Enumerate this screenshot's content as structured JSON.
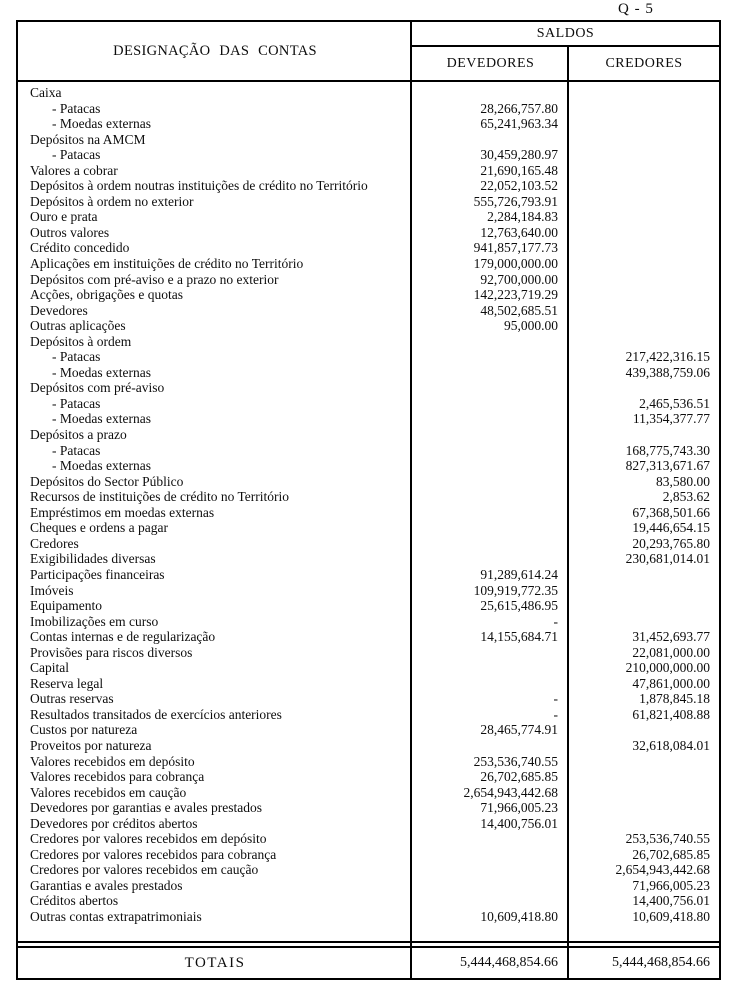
{
  "page": {
    "tag": "Q - 5"
  },
  "colors": {
    "ink": "#0d0d0d",
    "background": "#ffffff",
    "border": "#000000"
  },
  "table": {
    "header": {
      "designation": "DESIGNAÇÃO DAS CONTAS",
      "saldos": "SALDOS",
      "devedores": "DEVEDORES",
      "credores": "CREDORES"
    },
    "rows": [
      {
        "label": "Caixa",
        "indent": 0,
        "dev": "",
        "cred": ""
      },
      {
        "label": "- Patacas",
        "indent": 1,
        "dev": "28,266,757.80",
        "cred": ""
      },
      {
        "label": "- Moedas externas",
        "indent": 1,
        "dev": "65,241,963.34",
        "cred": ""
      },
      {
        "label": "Depósitos na AMCM",
        "indent": 0,
        "dev": "",
        "cred": ""
      },
      {
        "label": "- Patacas",
        "indent": 1,
        "dev": "30,459,280.97",
        "cred": ""
      },
      {
        "label": "Valores a cobrar",
        "indent": 0,
        "dev": "21,690,165.48",
        "cred": ""
      },
      {
        "label": "Depósitos à ordem noutras instituições de crédito no Território",
        "indent": 0,
        "dev": "22,052,103.52",
        "cred": ""
      },
      {
        "label": "Depósitos à ordem no exterior",
        "indent": 0,
        "dev": "555,726,793.91",
        "cred": ""
      },
      {
        "label": "Ouro e prata",
        "indent": 0,
        "dev": "2,284,184.83",
        "cred": ""
      },
      {
        "label": "Outros valores",
        "indent": 0,
        "dev": "12,763,640.00",
        "cred": ""
      },
      {
        "label": "Crédito concedido",
        "indent": 0,
        "dev": "941,857,177.73",
        "cred": ""
      },
      {
        "label": "Aplicações em instituições de crédito no Território",
        "indent": 0,
        "dev": "179,000,000.00",
        "cred": ""
      },
      {
        "label": "Depósitos com pré-aviso e a prazo no exterior",
        "indent": 0,
        "dev": "92,700,000.00",
        "cred": ""
      },
      {
        "label": "Acções, obrigações e quotas",
        "indent": 0,
        "dev": "142,223,719.29",
        "cred": ""
      },
      {
        "label": "Devedores",
        "indent": 0,
        "dev": "48,502,685.51",
        "cred": ""
      },
      {
        "label": "Outras aplicações",
        "indent": 0,
        "dev": "95,000.00",
        "cred": ""
      },
      {
        "label": "Depósitos à ordem",
        "indent": 0,
        "dev": "",
        "cred": ""
      },
      {
        "label": "- Patacas",
        "indent": 1,
        "dev": "",
        "cred": "217,422,316.15"
      },
      {
        "label": "- Moedas externas",
        "indent": 1,
        "dev": "",
        "cred": "439,388,759.06"
      },
      {
        "label": "Depósitos com pré-aviso",
        "indent": 0,
        "dev": "",
        "cred": ""
      },
      {
        "label": "- Patacas",
        "indent": 1,
        "dev": "",
        "cred": "2,465,536.51"
      },
      {
        "label": "- Moedas externas",
        "indent": 1,
        "dev": "",
        "cred": "11,354,377.77"
      },
      {
        "label": "Depósitos a prazo",
        "indent": 0,
        "dev": "",
        "cred": ""
      },
      {
        "label": "- Patacas",
        "indent": 1,
        "dev": "",
        "cred": "168,775,743.30"
      },
      {
        "label": "- Moedas externas",
        "indent": 1,
        "dev": "",
        "cred": "827,313,671.67"
      },
      {
        "label": "Depósitos do Sector Público",
        "indent": 0,
        "dev": "",
        "cred": "83,580.00"
      },
      {
        "label": "Recursos de instituições de crédito no Território",
        "indent": 0,
        "dev": "",
        "cred": "2,853.62"
      },
      {
        "label": "Empréstimos em moedas externas",
        "indent": 0,
        "dev": "",
        "cred": "67,368,501.66"
      },
      {
        "label": "Cheques e ordens a pagar",
        "indent": 0,
        "dev": "",
        "cred": "19,446,654.15"
      },
      {
        "label": "Credores",
        "indent": 0,
        "dev": "",
        "cred": "20,293,765.80"
      },
      {
        "label": "Exigibilidades diversas",
        "indent": 0,
        "dev": "",
        "cred": "230,681,014.01"
      },
      {
        "label": "Participações financeiras",
        "indent": 0,
        "dev": "91,289,614.24",
        "cred": ""
      },
      {
        "label": "Imóveis",
        "indent": 0,
        "dev": "109,919,772.35",
        "cred": ""
      },
      {
        "label": "Equipamento",
        "indent": 0,
        "dev": "25,615,486.95",
        "cred": ""
      },
      {
        "label": "Imobilizações em curso",
        "indent": 0,
        "dev": "-",
        "cred": ""
      },
      {
        "label": "Contas internas e de regularização",
        "indent": 0,
        "dev": "14,155,684.71",
        "cred": "31,452,693.77"
      },
      {
        "label": "Provisões para riscos diversos",
        "indent": 0,
        "dev": "",
        "cred": "22,081,000.00"
      },
      {
        "label": "Capital",
        "indent": 0,
        "dev": "",
        "cred": "210,000,000.00"
      },
      {
        "label": "Reserva legal",
        "indent": 0,
        "dev": "",
        "cred": "47,861,000.00"
      },
      {
        "label": "Outras reservas",
        "indent": 0,
        "dev": "-",
        "cred": "1,878,845.18"
      },
      {
        "label": "Resultados transitados de exercícios anteriores",
        "indent": 0,
        "dev": "-",
        "cred": "61,821,408.88"
      },
      {
        "label": "Custos por natureza",
        "indent": 0,
        "dev": "28,465,774.91",
        "cred": ""
      },
      {
        "label": "Proveitos por natureza",
        "indent": 0,
        "dev": "",
        "cred": "32,618,084.01"
      },
      {
        "label": "Valores recebidos em depósito",
        "indent": 0,
        "dev": "253,536,740.55",
        "cred": ""
      },
      {
        "label": "Valores recebidos para cobrança",
        "indent": 0,
        "dev": "26,702,685.85",
        "cred": ""
      },
      {
        "label": "Valores recebidos em caução",
        "indent": 0,
        "dev": "2,654,943,442.68",
        "cred": ""
      },
      {
        "label": "Devedores por garantias e avales prestados",
        "indent": 0,
        "dev": "71,966,005.23",
        "cred": ""
      },
      {
        "label": "Devedores por créditos abertos",
        "indent": 0,
        "dev": "14,400,756.01",
        "cred": ""
      },
      {
        "label": "Credores por valores recebidos em depósito",
        "indent": 0,
        "dev": "",
        "cred": "253,536,740.55"
      },
      {
        "label": "Credores por valores recebidos para cobrança",
        "indent": 0,
        "dev": "",
        "cred": "26,702,685.85"
      },
      {
        "label": "Credores por valores recebidos em caução",
        "indent": 0,
        "dev": "",
        "cred": "2,654,943,442.68"
      },
      {
        "label": "Garantias e avales prestados",
        "indent": 0,
        "dev": "",
        "cred": "71,966,005.23"
      },
      {
        "label": "Créditos abertos",
        "indent": 0,
        "dev": "",
        "cred": "14,400,756.01"
      },
      {
        "label": "Outras contas extrapatrimoniais",
        "indent": 0,
        "dev": "10,609,418.80",
        "cred": "10,609,418.80"
      }
    ],
    "totals": {
      "label": "TOTAIS",
      "dev": "5,444,468,854.66",
      "cred": "5,444,468,854.66"
    }
  }
}
